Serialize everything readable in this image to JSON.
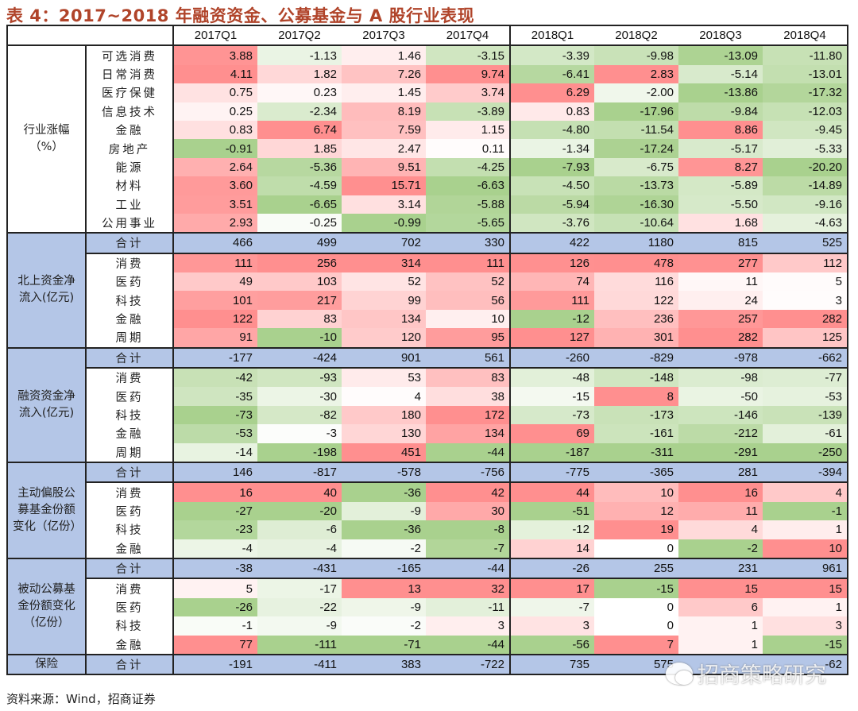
{
  "title": "表 4：2017~2018 年融资资金、公募基金与 A 股行业表现",
  "columns": [
    "2017Q1",
    "2017Q2",
    "2017Q3",
    "2017Q4",
    "2018Q1",
    "2018Q2",
    "2018Q3",
    "2018Q4"
  ],
  "colors": {
    "positive": "#ff8f8f",
    "negative": "#a9d18e",
    "neutral": "#ffffff",
    "total_row": "#b4c6e7",
    "title": "#b0442a"
  },
  "sections": [
    {
      "group": "行业涨幅（%）",
      "total": null,
      "rows": [
        {
          "label": "可选消费",
          "values": [
            "3.88",
            "-1.13",
            "1.46",
            "-3.15",
            "-3.39",
            "-9.98",
            "-13.09",
            "-11.80"
          ]
        },
        {
          "label": "日常消费",
          "values": [
            "4.11",
            "1.82",
            "7.26",
            "9.74",
            "-6.41",
            "2.83",
            "-5.14",
            "-13.01"
          ]
        },
        {
          "label": "医疗保健",
          "values": [
            "0.75",
            "0.23",
            "1.45",
            "3.74",
            "6.29",
            "-2.00",
            "-13.86",
            "-17.32"
          ]
        },
        {
          "label": "信息技术",
          "values": [
            "0.25",
            "-2.34",
            "8.19",
            "-3.89",
            "0.83",
            "-17.96",
            "-9.84",
            "-12.03"
          ]
        },
        {
          "label": "金融",
          "values": [
            "0.83",
            "6.74",
            "7.59",
            "1.15",
            "-4.80",
            "-11.54",
            "8.86",
            "-9.45"
          ]
        },
        {
          "label": "房地产",
          "values": [
            "-0.91",
            "1.85",
            "2.47",
            "0.11",
            "-1.34",
            "-17.24",
            "-5.17",
            "-5.33"
          ]
        },
        {
          "label": "能源",
          "values": [
            "2.64",
            "-5.36",
            "9.51",
            "-4.25",
            "-7.93",
            "-6.75",
            "8.27",
            "-20.20"
          ]
        },
        {
          "label": "材料",
          "values": [
            "3.60",
            "-4.59",
            "15.71",
            "-6.63",
            "-4.50",
            "-13.73",
            "-5.89",
            "-14.89"
          ]
        },
        {
          "label": "工业",
          "values": [
            "3.51",
            "-6.65",
            "3.14",
            "-5.88",
            "-5.94",
            "-16.30",
            "-5.50",
            "-9.16"
          ]
        },
        {
          "label": "公用事业",
          "values": [
            "2.93",
            "-0.25",
            "-0.99",
            "-5.65",
            "-3.76",
            "-10.64",
            "1.68",
            "-4.63"
          ]
        }
      ]
    },
    {
      "group": "北上资金净流入(亿元)",
      "total": {
        "label": "合计",
        "values": [
          "466",
          "499",
          "702",
          "330",
          "422",
          "1180",
          "815",
          "525"
        ]
      },
      "rows": [
        {
          "label": "消费",
          "values": [
            "111",
            "256",
            "314",
            "111",
            "126",
            "478",
            "277",
            "112"
          ]
        },
        {
          "label": "医药",
          "values": [
            "49",
            "103",
            "52",
            "52",
            "74",
            "116",
            "11",
            "5"
          ]
        },
        {
          "label": "科技",
          "values": [
            "101",
            "217",
            "99",
            "56",
            "111",
            "122",
            "24",
            "3"
          ]
        },
        {
          "label": "金融",
          "values": [
            "122",
            "83",
            "134",
            "10",
            "-12",
            "236",
            "257",
            "282"
          ]
        },
        {
          "label": "周期",
          "values": [
            "91",
            "-10",
            "120",
            "95",
            "127",
            "301",
            "282",
            "125"
          ]
        }
      ]
    },
    {
      "group": "融资资金净流入(亿元)",
      "total": {
        "label": "合计",
        "values": [
          "-177",
          "-424",
          "901",
          "561",
          "-260",
          "-829",
          "-978",
          "-662"
        ]
      },
      "rows": [
        {
          "label": "消费",
          "values": [
            "-42",
            "-93",
            "53",
            "83",
            "-48",
            "-148",
            "-98",
            "-77"
          ]
        },
        {
          "label": "医药",
          "values": [
            "-35",
            "-30",
            "4",
            "38",
            "-15",
            "8",
            "-50",
            "-53"
          ]
        },
        {
          "label": "科技",
          "values": [
            "-73",
            "-82",
            "180",
            "172",
            "-73",
            "-173",
            "-146",
            "-139"
          ]
        },
        {
          "label": "金融",
          "values": [
            "-53",
            "-3",
            "130",
            "134",
            "69",
            "-161",
            "-212",
            "-61"
          ]
        },
        {
          "label": "周期",
          "values": [
            "-14",
            "-198",
            "451",
            "-44",
            "-187",
            "-311",
            "-291",
            "-250"
          ]
        }
      ]
    },
    {
      "group": "主动偏股公募基金份额变化（亿份）",
      "total": {
        "label": "合计",
        "values": [
          "146",
          "-817",
          "-578",
          "-756",
          "-775",
          "-365",
          "281",
          "-394"
        ]
      },
      "rows": [
        {
          "label": "消费",
          "values": [
            "16",
            "40",
            "-36",
            "42",
            "44",
            "10",
            "16",
            "4"
          ]
        },
        {
          "label": "医药",
          "values": [
            "-27",
            "-20",
            "-9",
            "30",
            "-51",
            "12",
            "11",
            "-1"
          ]
        },
        {
          "label": "科技",
          "values": [
            "-23",
            "-6",
            "-36",
            "-8",
            "-12",
            "19",
            "4",
            "1"
          ]
        },
        {
          "label": "金融",
          "values": [
            "-4",
            "-4",
            "-2",
            "-7",
            "14",
            "0",
            "-2",
            "10"
          ]
        }
      ]
    },
    {
      "group": "被动公募基金份额变化（亿份）",
      "total": {
        "label": "合计",
        "values": [
          "-38",
          "-431",
          "-165",
          "-44",
          "-26",
          "255",
          "231",
          "961"
        ]
      },
      "rows": [
        {
          "label": "消费",
          "values": [
            "5",
            "-17",
            "13",
            "32",
            "17",
            "-15",
            "15",
            "15"
          ]
        },
        {
          "label": "医药",
          "values": [
            "-26",
            "-22",
            "-9",
            "-11",
            "-7",
            "0",
            "6",
            "1"
          ]
        },
        {
          "label": "科技",
          "values": [
            "-1",
            "-9",
            "-2",
            "3",
            "3",
            "0",
            "1",
            "3"
          ]
        },
        {
          "label": "金融",
          "values": [
            "77",
            "-111",
            "-71",
            "-44",
            "-56",
            "7",
            "1",
            "-15"
          ]
        }
      ]
    },
    {
      "group": "保险",
      "total": {
        "label": "合计",
        "values": [
          "-191",
          "-411",
          "383",
          "-722",
          "735",
          "575",
          "",
          "-62"
        ]
      },
      "rows": []
    }
  ],
  "footer": "资料来源：Wind，招商证券",
  "watermark": "招商策略研究"
}
